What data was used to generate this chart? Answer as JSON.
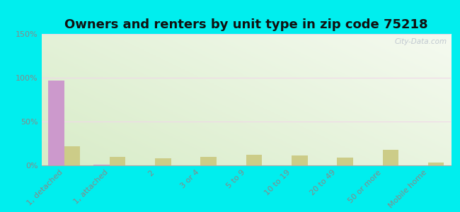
{
  "title": "Owners and renters by unit type in zip code 75218",
  "categories": [
    "1, detached",
    "1, attached",
    "2",
    "3 or 4",
    "5 to 9",
    "10 to 19",
    "20 to 49",
    "50 or more",
    "Mobile home"
  ],
  "owner_values": [
    97,
    1,
    0,
    0,
    0,
    0,
    0,
    0,
    0
  ],
  "renter_values": [
    22,
    10,
    8,
    10,
    12,
    11,
    9,
    18,
    3
  ],
  "owner_color": "#cc99cc",
  "renter_color": "#cccc88",
  "background_color": "#00eeee",
  "plot_bg_color1": "#d8ecc8",
  "plot_bg_color2": "#f0f8e8",
  "grid_color": "#e8d8e8",
  "ylim": [
    0,
    150
  ],
  "yticks": [
    0,
    50,
    100,
    150
  ],
  "ytick_labels": [
    "0%",
    "50%",
    "100%",
    "150%"
  ],
  "bar_width": 0.35,
  "title_fontsize": 13,
  "tick_fontsize": 8,
  "legend_fontsize": 9,
  "watermark": "City-Data.com",
  "axis_color": "#aaaaaa",
  "label_color": "#888888"
}
